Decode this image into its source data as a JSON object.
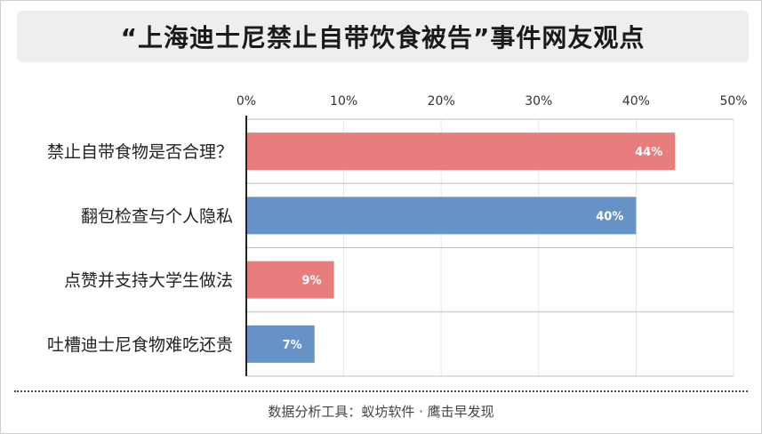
{
  "title": "“上海迪士尼禁止自带饮食被告”事件网友观点",
  "footer": "数据分析工具：蚁坊软件 · 鹰击早发现",
  "colors": {
    "red": "#E77D7D",
    "blue": "#6692C8"
  },
  "chart_data": {
    "type": "bar",
    "orientation": "horizontal",
    "categories": [
      "禁止自带食物是否合理？",
      "翻包检查与个人隐私",
      "点赞并支持大学生做法",
      "吐槽迪士尼食物难吃还贵"
    ],
    "values": [
      44,
      40,
      9,
      7
    ],
    "value_labels": [
      "44%",
      "40%",
      "9%",
      "7%"
    ],
    "bar_colors": [
      "#E77D7D",
      "#6692C8",
      "#E77D7D",
      "#6692C8"
    ],
    "xlim": [
      0,
      50
    ],
    "xticks": [
      "0%",
      "10%",
      "20%",
      "30%",
      "40%",
      "50%"
    ],
    "grid": true
  }
}
